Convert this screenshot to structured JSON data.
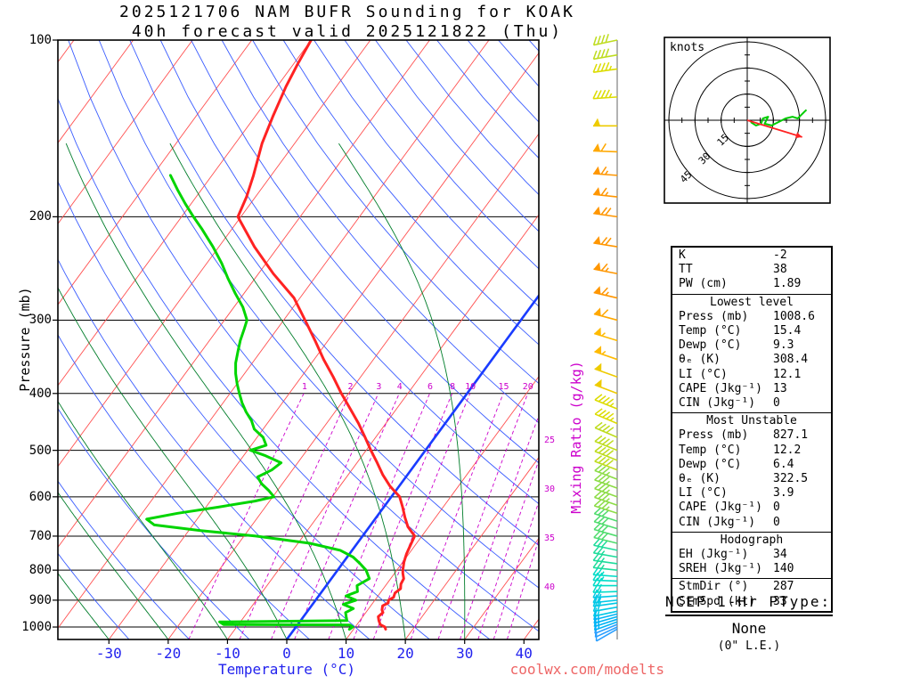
{
  "title": {
    "line1": "2025121706 NAM BUFR Sounding for KOAK",
    "line2": "40h forecast valid 2025121822 (Thu)"
  },
  "axes": {
    "pressure_label": "Pressure (mb)",
    "pressure_ticks": [
      100,
      200,
      300,
      400,
      500,
      600,
      700,
      800,
      900,
      1000
    ],
    "temp_label": "Temperature (°C)",
    "temp_ticks": [
      -30,
      -20,
      -10,
      0,
      10,
      20,
      30,
      40
    ],
    "mixing_label": "Mixing Ratio (g/kg)",
    "mixing_ticks_inner": [
      1,
      2,
      3,
      4,
      6,
      8,
      10,
      15,
      20
    ],
    "mixing_ticks_right": [
      25,
      30,
      35,
      40
    ]
  },
  "watermark": "coolwx.com/modelts",
  "ptype": {
    "header": "NCEP 1-Hr PType:",
    "value": "None",
    "le": "(0\" L.E.)"
  },
  "hodograph": {
    "unit_label": "knots",
    "ring_labels": [
      "15",
      "30",
      "45"
    ],
    "rings_kt": [
      15,
      30,
      45
    ],
    "storm_dir_deg": 287,
    "storm_spd_kt": 33,
    "trace_uv_kt": [
      [
        2,
        -1
      ],
      [
        5,
        -3
      ],
      [
        8,
        -2
      ],
      [
        9,
        1
      ],
      [
        12,
        2
      ],
      [
        10,
        -2
      ],
      [
        14,
        -3
      ],
      [
        18,
        -1
      ],
      [
        22,
        1
      ],
      [
        26,
        2
      ],
      [
        29,
        1
      ],
      [
        31,
        3
      ],
      [
        33,
        5
      ],
      [
        34,
        6
      ]
    ]
  },
  "indices": {
    "sections": [
      {
        "title": null,
        "rows": [
          [
            "K",
            "-2"
          ],
          [
            "TT",
            "38"
          ],
          [
            "PW (cm)",
            "1.89"
          ]
        ]
      },
      {
        "title": "Lowest level",
        "rows": [
          [
            "Press (mb)",
            "1008.6"
          ],
          [
            "Temp (°C)",
            "15.4"
          ],
          [
            "Dewp (°C)",
            "9.3"
          ],
          [
            "θₑ (K)",
            "308.4"
          ],
          [
            "LI (°C)",
            "12.1"
          ],
          [
            "CAPE (Jkg⁻¹)",
            "13"
          ],
          [
            "CIN (Jkg⁻¹)",
            "0"
          ]
        ]
      },
      {
        "title": "Most Unstable",
        "rows": [
          [
            "Press (mb)",
            "827.1"
          ],
          [
            "Temp (°C)",
            "12.2"
          ],
          [
            "Dewp (°C)",
            "6.4"
          ],
          [
            "θₑ (K)",
            "322.5"
          ],
          [
            "LI (°C)",
            "3.9"
          ],
          [
            "CAPE (Jkg⁻¹)",
            "0"
          ],
          [
            "CIN (Jkg⁻¹)",
            "0"
          ]
        ]
      },
      {
        "title": "Hodograph",
        "rows": [
          [
            "EH (Jkg⁻¹)",
            "34"
          ],
          [
            "SREH (Jkg⁻¹)",
            "140"
          ]
        ]
      },
      {
        "title": null,
        "rows": [
          [
            "StmDir (°)",
            "287"
          ],
          [
            "StmSpd (kt)",
            "33"
          ]
        ]
      }
    ]
  },
  "chart_data": {
    "type": "line",
    "subtype": "skew-t-log-p-sounding",
    "title": "2025121706 NAM BUFR Sounding for KOAK",
    "subtitle": "40h forecast valid 2025121822 (Thu)",
    "xlabel": "Temperature (°C)",
    "ylabel": "Pressure (mb)",
    "x_range_c": [
      -35,
      42.5
    ],
    "y_range_mb": [
      1050,
      100
    ],
    "y_scale": "log",
    "grid": {
      "isotherms_c": {
        "from": -120,
        "to": 40,
        "step": 10,
        "color": "#ff5050"
      },
      "dry_adiabats_theta_c": {
        "from": -30,
        "to": 190,
        "step": 10,
        "color": "#3a5cff"
      },
      "moist_adiabats_start_c": [
        -60,
        -50,
        -40,
        -30,
        -20,
        -10,
        0,
        10,
        20,
        30
      ],
      "moist_adiabat_color": "#007d2a",
      "mixing_ratio_gkg": [
        1,
        2,
        3,
        4,
        6,
        8,
        10,
        15,
        20,
        25,
        30,
        35,
        40
      ],
      "mixing_ratio_color": "#cc00cc",
      "freezing_isotherm_c": 0,
      "freezing_isotherm_color": "#1a3cff"
    },
    "series": [
      {
        "name": "Temperature",
        "color": "#ff2222",
        "points_p_T": [
          [
            1008.6,
            15.4
          ],
          [
            1000,
            15.0
          ],
          [
            990,
            13.9
          ],
          [
            975,
            13.2
          ],
          [
            960,
            12.6
          ],
          [
            945,
            12.9
          ],
          [
            935,
            12.4
          ],
          [
            920,
            12.0
          ],
          [
            910,
            12.6
          ],
          [
            900,
            12.3
          ],
          [
            890,
            12.8
          ],
          [
            875,
            12.5
          ],
          [
            860,
            12.9
          ],
          [
            845,
            12.4
          ],
          [
            827,
            12.2
          ],
          [
            810,
            11.4
          ],
          [
            800,
            11.0
          ],
          [
            775,
            10.2
          ],
          [
            750,
            9.6
          ],
          [
            725,
            9.2
          ],
          [
            700,
            8.8
          ],
          [
            675,
            6.5
          ],
          [
            650,
            4.8
          ],
          [
            625,
            3.2
          ],
          [
            600,
            1.4
          ],
          [
            575,
            -1.6
          ],
          [
            550,
            -4.2
          ],
          [
            525,
            -6.6
          ],
          [
            500,
            -9.2
          ],
          [
            475,
            -11.8
          ],
          [
            450,
            -14.6
          ],
          [
            425,
            -17.8
          ],
          [
            400,
            -21.2
          ],
          [
            375,
            -24.6
          ],
          [
            350,
            -28.4
          ],
          [
            325,
            -32.2
          ],
          [
            300,
            -36.4
          ],
          [
            275,
            -41.0
          ],
          [
            250,
            -47.5
          ],
          [
            225,
            -54.0
          ],
          [
            200,
            -60.5
          ],
          [
            185,
            -61.5
          ],
          [
            170,
            -63.0
          ],
          [
            150,
            -65.5
          ],
          [
            135,
            -67.0
          ],
          [
            120,
            -68.5
          ],
          [
            110,
            -69.3
          ],
          [
            100,
            -70.0
          ]
        ]
      },
      {
        "name": "Dewpoint",
        "color": "#00d500",
        "points_p_T": [
          [
            1008.6,
            9.3
          ],
          [
            1000,
            9.6
          ],
          [
            992,
            8.8
          ],
          [
            990,
            -12.5
          ],
          [
            980,
            -13.5
          ],
          [
            975,
            7.8
          ],
          [
            960,
            7.2
          ],
          [
            945,
            6.6
          ],
          [
            930,
            7.4
          ],
          [
            915,
            5.2
          ],
          [
            900,
            6.8
          ],
          [
            885,
            4.6
          ],
          [
            870,
            6.0
          ],
          [
            850,
            5.2
          ],
          [
            827,
            6.4
          ],
          [
            800,
            4.8
          ],
          [
            780,
            3.0
          ],
          [
            760,
            1.0
          ],
          [
            740,
            -2.0
          ],
          [
            720,
            -8.0
          ],
          [
            700,
            -18.0
          ],
          [
            685,
            -28.0
          ],
          [
            670,
            -36.5
          ],
          [
            655,
            -38.5
          ],
          [
            640,
            -34.0
          ],
          [
            625,
            -28.0
          ],
          [
            610,
            -22.5
          ],
          [
            600,
            -19.8
          ],
          [
            585,
            -21.5
          ],
          [
            570,
            -23.5
          ],
          [
            555,
            -25.0
          ],
          [
            540,
            -23.5
          ],
          [
            525,
            -22.8
          ],
          [
            510,
            -26.5
          ],
          [
            500,
            -29.5
          ],
          [
            490,
            -27.5
          ],
          [
            475,
            -29.0
          ],
          [
            460,
            -31.5
          ],
          [
            445,
            -33.0
          ],
          [
            430,
            -35.0
          ],
          [
            415,
            -36.8
          ],
          [
            400,
            -38.4
          ],
          [
            385,
            -40.0
          ],
          [
            370,
            -41.5
          ],
          [
            355,
            -42.8
          ],
          [
            340,
            -43.8
          ],
          [
            325,
            -44.8
          ],
          [
            310,
            -45.6
          ],
          [
            300,
            -46.2
          ],
          [
            285,
            -48.5
          ],
          [
            270,
            -51.5
          ],
          [
            255,
            -54.5
          ],
          [
            240,
            -57.5
          ],
          [
            225,
            -61.0
          ],
          [
            210,
            -65.0
          ],
          [
            200,
            -68.0
          ],
          [
            190,
            -71.0
          ],
          [
            180,
            -74.0
          ],
          [
            170,
            -77.0
          ]
        ]
      }
    ],
    "winds_p_dir_spd": [
      [
        1008,
        240,
        8
      ],
      [
        1000,
        245,
        10
      ],
      [
        990,
        248,
        12
      ],
      [
        980,
        250,
        13
      ],
      [
        970,
        252,
        14
      ],
      [
        960,
        254,
        15
      ],
      [
        950,
        256,
        16
      ],
      [
        940,
        258,
        17
      ],
      [
        925,
        260,
        18
      ],
      [
        910,
        262,
        19
      ],
      [
        900,
        264,
        20
      ],
      [
        885,
        266,
        20
      ],
      [
        870,
        268,
        21
      ],
      [
        850,
        270,
        22
      ],
      [
        835,
        272,
        23
      ],
      [
        820,
        274,
        24
      ],
      [
        800,
        276,
        25
      ],
      [
        780,
        278,
        26
      ],
      [
        760,
        280,
        27
      ],
      [
        740,
        282,
        28
      ],
      [
        720,
        284,
        29
      ],
      [
        700,
        286,
        30
      ],
      [
        680,
        287,
        31
      ],
      [
        660,
        288,
        32
      ],
      [
        640,
        288,
        33
      ],
      [
        620,
        289,
        34
      ],
      [
        600,
        290,
        35
      ],
      [
        580,
        290,
        36
      ],
      [
        560,
        291,
        37
      ],
      [
        540,
        291,
        38
      ],
      [
        520,
        292,
        39
      ],
      [
        500,
        292,
        40
      ],
      [
        475,
        293,
        42
      ],
      [
        450,
        293,
        44
      ],
      [
        425,
        292,
        46
      ],
      [
        400,
        291,
        48
      ],
      [
        375,
        290,
        51
      ],
      [
        350,
        289,
        54
      ],
      [
        325,
        287,
        57
      ],
      [
        300,
        285,
        60
      ],
      [
        275,
        283,
        63
      ],
      [
        250,
        281,
        66
      ],
      [
        225,
        279,
        69
      ],
      [
        200,
        278,
        70
      ],
      [
        185,
        276,
        67
      ],
      [
        170,
        274,
        63
      ],
      [
        155,
        272,
        58
      ],
      [
        140,
        270,
        52
      ],
      [
        125,
        266,
        47
      ],
      [
        112,
        262,
        43
      ],
      [
        106,
        260,
        41
      ],
      [
        100,
        258,
        40
      ]
    ],
    "wind_speed_colors": [
      [
        12,
        "#2a9fff"
      ],
      [
        16,
        "#00b4f5"
      ],
      [
        20,
        "#00c8e6"
      ],
      [
        24,
        "#00dcc8"
      ],
      [
        28,
        "#1edc9b"
      ],
      [
        32,
        "#50dc6e"
      ],
      [
        37,
        "#8cdc46"
      ],
      [
        42,
        "#bedc1e"
      ],
      [
        47,
        "#dcdc00"
      ],
      [
        52,
        "#eecb00"
      ],
      [
        57,
        "#ffba00"
      ],
      [
        62,
        "#ffa800"
      ],
      [
        999,
        "#ff9600"
      ]
    ]
  }
}
